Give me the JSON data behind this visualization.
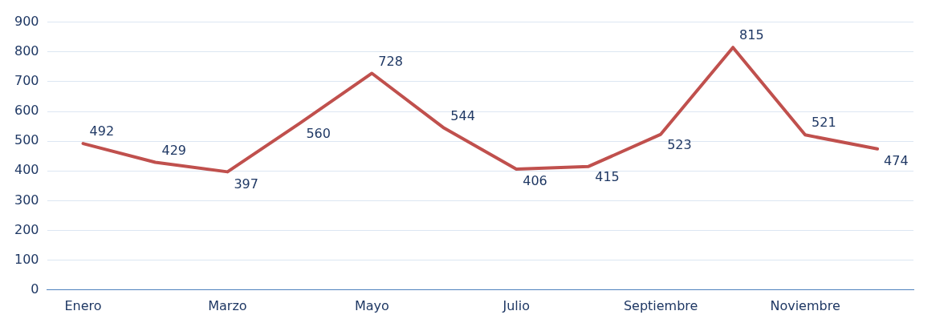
{
  "chart_data": {
    "type": "line",
    "categories": [
      "Enero",
      null,
      "Marzo",
      null,
      "Mayo",
      null,
      "Julio",
      null,
      "Septiembre",
      null,
      "Noviembre",
      null
    ],
    "series": [
      {
        "color": "#c0504d",
        "values": [
          492,
          429,
          397,
          560,
          728,
          544,
          406,
          415,
          523,
          815,
          521,
          474
        ]
      }
    ],
    "ylim": [
      0,
      900
    ],
    "yticks": [
      0,
      100,
      200,
      300,
      400,
      500,
      600,
      700,
      800,
      900
    ],
    "grid": "y",
    "legend": false,
    "marker": "none",
    "line_style": "solid",
    "data_labels": true
  }
}
